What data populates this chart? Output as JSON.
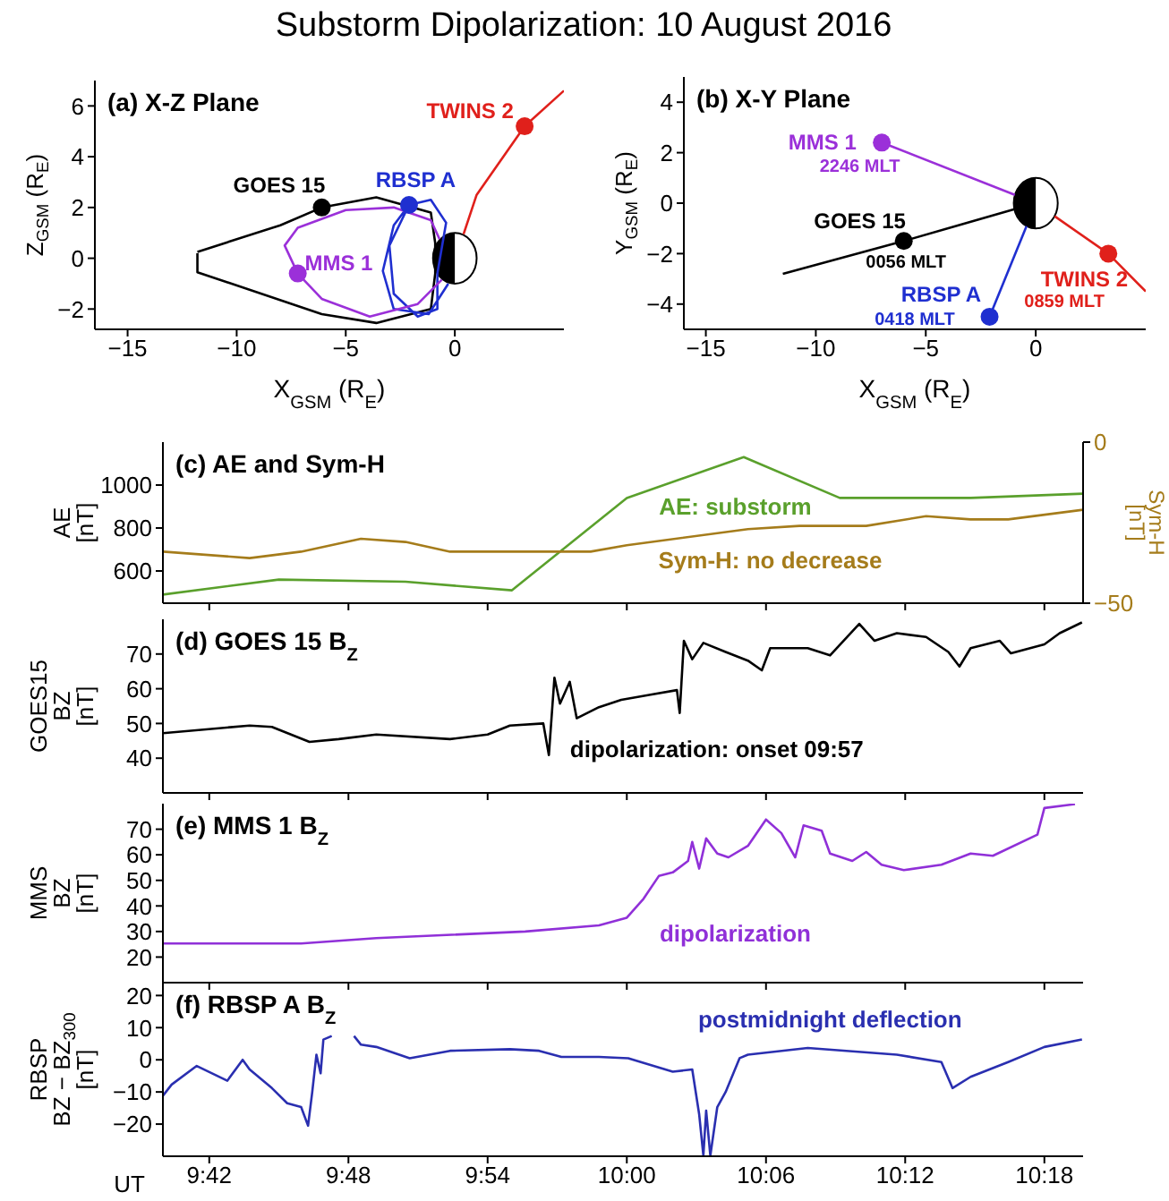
{
  "chart_data": [
    {
      "type": "line",
      "title": "Substorm Dipolarization:  10 August 2016",
      "subtitle": "(a)  X-Z Plane",
      "xlabel": "X$_{GSM}$  (R$_{E}$)",
      "ylabel": "Z$_{GSM}$  (R$_{E}$)",
      "xlim": [
        -16.5,
        5
      ],
      "ylim": [
        -2.8,
        7
      ],
      "xticks": [
        -15,
        -10,
        -5,
        0
      ],
      "yticks": [
        -2,
        0,
        2,
        4,
        6
      ],
      "series": [
        {
          "type": "line",
          "color": "#000000",
          "x": [
            -11.8,
            -8,
            -6.1,
            -3.6,
            -1.1,
            -0.9,
            -0.9,
            -1.1,
            -3.6,
            -6.1,
            -11.8,
            -11.8
          ],
          "values": [
            0.25,
            1.3,
            2.0,
            2.4,
            1.8,
            0.6,
            -0.6,
            -2.0,
            -2.55,
            -2.2,
            -0.55,
            0.2
          ]
        },
        {
          "type": "line",
          "color": "#1f2fd0",
          "x": [
            -0.3,
            -1.2,
            -2.8,
            -3.3,
            -2.8,
            -2.1,
            -1.1,
            -0.4,
            -0.8,
            -0.8,
            -1.7,
            -2.8,
            -3.0,
            -2.1
          ],
          "values": [
            -1.0,
            -2.2,
            -2.0,
            -0.5,
            1.3,
            2.1,
            2.3,
            1.4,
            -0.6,
            -2.0,
            -2.3,
            -1.4,
            0.5,
            2.1
          ]
        },
        {
          "type": "line",
          "color": "#e0201b",
          "x": [
            0.4,
            1.0,
            3.2,
            5.0
          ],
          "values": [
            0.95,
            2.5,
            5.2,
            6.6
          ]
        },
        {
          "type": "line",
          "color": "#9b30d9",
          "x": [
            -0.7,
            -1.1,
            -2.8,
            -5.0,
            -7.2,
            -7.8,
            -7.2,
            -6.1,
            -3.9,
            -1.7,
            -0.6
          ],
          "values": [
            0.75,
            1.5,
            2.0,
            1.9,
            1.2,
            0.5,
            -0.6,
            -1.6,
            -2.3,
            -1.8,
            -0.85
          ]
        },
        {
          "type": "scatter",
          "marker": "circle",
          "color": "#000000",
          "x": [
            -6.1
          ],
          "values": [
            2.0
          ]
        },
        {
          "type": "scatter",
          "marker": "circle",
          "color": "#1f2fd0",
          "x": [
            -2.1
          ],
          "values": [
            2.1
          ]
        },
        {
          "type": "scatter",
          "marker": "circle",
          "color": "#e0201b",
          "x": [
            3.2
          ],
          "values": [
            5.2
          ]
        },
        {
          "type": "scatter",
          "marker": "circle",
          "color": "#9b30d9",
          "x": [
            -7.2
          ],
          "values": [
            -0.6
          ]
        }
      ],
      "annotations": [
        "GOES 15",
        "RBSP A",
        "TWINS 2",
        "MMS 1"
      ]
    },
    {
      "type": "line",
      "title": "(b)  X-Y Plane",
      "xlabel": "X$_{GSM}$  (R$_{E}$)",
      "ylabel": "Y$_{GSM}$  (R$_{E}$)",
      "xlim": [
        -16,
        5
      ],
      "ylim": [
        -5,
        5
      ],
      "xticks": [
        -15,
        -10,
        -5,
        0
      ],
      "yticks": [
        -4,
        -2,
        0,
        2,
        4
      ],
      "series": [
        {
          "type": "line",
          "color": "#9b30d9",
          "x": [
            -7.0,
            -0.95
          ],
          "values": [
            2.4,
            0.33
          ]
        },
        {
          "type": "line",
          "color": "#000000",
          "x": [
            -11.5,
            -6.0,
            -0.97
          ],
          "values": [
            -2.8,
            -1.5,
            -0.24
          ]
        },
        {
          "type": "line",
          "color": "#1f2fd0",
          "x": [
            -2.1,
            -0.42
          ],
          "values": [
            -4.5,
            -0.91
          ]
        },
        {
          "type": "line",
          "color": "#e0201b",
          "x": [
            0.86,
            3.3,
            5
          ],
          "values": [
            -0.52,
            -2.0,
            -3.5
          ]
        },
        {
          "type": "scatter",
          "marker": "circle",
          "color": "#9b30d9",
          "x": [
            -7.0
          ],
          "values": [
            2.4
          ]
        },
        {
          "type": "scatter",
          "marker": "circle",
          "color": "#000000",
          "x": [
            -6.0
          ],
          "values": [
            -1.5
          ]
        },
        {
          "type": "scatter",
          "marker": "circle",
          "color": "#1f2fd0",
          "x": [
            -2.1
          ],
          "values": [
            -4.5
          ]
        },
        {
          "type": "scatter",
          "marker": "circle",
          "color": "#e0201b",
          "x": [
            3.3
          ],
          "values": [
            -2.0
          ]
        }
      ],
      "annotations": [
        "MMS 1",
        "GOES 15",
        "RBSP A",
        "TWINS 2",
        "2246 MLT",
        "0056 MLT",
        "0418 MLT",
        "0859 MLT"
      ]
    },
    {
      "type": "line",
      "title": "(c)  AE and Sym-H",
      "ylabel": "AE\n[nT]",
      "y2label": "Sym-H\n[nT]",
      "tick_labels": "y",
      "xlim": [
        9.6667,
        10.3278
      ],
      "xticks": [
        {
          "value": 9.7,
          "label": null
        },
        {
          "value": 9.8,
          "label": null
        },
        {
          "value": 9.9,
          "label": null
        },
        {
          "value": 10.0,
          "label": null
        },
        {
          "value": 10.1,
          "label": null
        },
        {
          "value": 10.2,
          "label": null
        },
        {
          "value": 10.3,
          "label": null
        }
      ],
      "ylim": [
        450,
        1200
      ],
      "yticks": [
        600,
        800,
        1000
      ],
      "y2lim": [
        -50,
        0
      ],
      "y2ticks": [
        -50,
        0
      ],
      "series": [
        {
          "color": "#5aa02c",
          "x": [
            9.6667,
            9.75,
            9.841,
            9.9175,
            10.0,
            10.084,
            10.153,
            10.247,
            10.3278
          ],
          "values": [
            490,
            560,
            550,
            510,
            940,
            1130,
            940,
            940,
            960
          ]
        },
        {
          "color": "#a57c1b",
          "axis": "y2",
          "x": [
            9.6667,
            9.729,
            9.766,
            9.809,
            9.841,
            9.873,
            9.974,
            10.0,
            10.087,
            10.124,
            10.172,
            10.215,
            10.247,
            10.274,
            10.3278
          ],
          "values": [
            -34,
            -36,
            -34,
            -30,
            -31,
            -34,
            -34,
            -32,
            -27,
            -26,
            -26,
            -23,
            -24,
            -24,
            -21
          ]
        }
      ],
      "annotations": [
        "AE:  substorm",
        "Sym-H:  no decrease"
      ]
    },
    {
      "type": "line",
      "title": "(d)  GOES 15 B$_{Z}$",
      "ylabel": "GOES15\nBZ\n[nT]",
      "tick_labels": "y",
      "xlim": [
        9.6667,
        10.3278
      ],
      "xticks": [
        {
          "value": 9.7,
          "label": null
        },
        {
          "value": 9.8,
          "label": null
        },
        {
          "value": 9.9,
          "label": null
        },
        {
          "value": 10.0,
          "label": null
        },
        {
          "value": 10.1,
          "label": null
        },
        {
          "value": 10.2,
          "label": null
        },
        {
          "value": 10.3,
          "label": null
        }
      ],
      "ylim": [
        30,
        80
      ],
      "yticks": [
        40,
        50,
        60,
        70
      ],
      "series": [
        {
          "color": "#000000",
          "x": [
            9.6667,
            9.729,
            9.745,
            9.772,
            9.793,
            9.82,
            9.873,
            9.9,
            9.916,
            9.94,
            9.944,
            9.948,
            9.952,
            9.959,
            9.964,
            9.98,
            9.996,
            10.017,
            10.036,
            10.038,
            10.041,
            10.047,
            10.055,
            10.071,
            10.087,
            10.097,
            10.103,
            10.13,
            10.146,
            10.167,
            10.178,
            10.194,
            10.215,
            10.231,
            10.239,
            10.247,
            10.268,
            10.276,
            10.3,
            10.311,
            10.327
          ],
          "values": [
            47.2,
            49.4,
            49,
            44.7,
            45.5,
            46.8,
            45.5,
            46.8,
            49.4,
            50,
            40.9,
            63.2,
            55.7,
            62,
            51.5,
            54.7,
            56.8,
            58.3,
            59.6,
            53,
            73.8,
            68.5,
            73.2,
            70.6,
            68.1,
            65.3,
            71.7,
            71.7,
            69.6,
            78.7,
            73.8,
            76,
            74.9,
            70.6,
            66.4,
            71.7,
            73.8,
            70.2,
            72.8,
            76,
            79.1
          ]
        }
      ],
      "annotations": [
        "dipolarization:  onset 09:57"
      ]
    },
    {
      "type": "line",
      "title": "(e)  MMS 1  B$_{Z}$",
      "ylabel": "MMS\nBZ\n[nT]",
      "tick_labels": "y",
      "xlim": [
        9.6667,
        10.3278
      ],
      "xticks": [
        {
          "value": 9.7,
          "label": null
        },
        {
          "value": 9.8,
          "label": null
        },
        {
          "value": 9.9,
          "label": null
        },
        {
          "value": 10.0,
          "label": null
        },
        {
          "value": 10.1,
          "label": null
        },
        {
          "value": 10.2,
          "label": null
        },
        {
          "value": 10.3,
          "label": null
        }
      ],
      "ylim": [
        10,
        80
      ],
      "yticks": [
        20,
        30,
        40,
        50,
        60,
        70
      ],
      "series": [
        {
          "color": "#9030d8",
          "x": [
            9.6667,
            9.766,
            9.82,
            9.927,
            9.98,
            10.0,
            10.012,
            10.023,
            10.033,
            10.044,
            10.047,
            10.052,
            10.057,
            10.065,
            10.073,
            10.087,
            10.1,
            10.111,
            10.121,
            10.127,
            10.14,
            10.146,
            10.162,
            10.172,
            10.183,
            10.199,
            10.226,
            10.247,
            10.263,
            10.295,
            10.3,
            10.322
          ],
          "values": [
            25.3,
            25.3,
            27.4,
            30,
            32.4,
            35.4,
            42.8,
            51.7,
            53.1,
            57.6,
            65,
            54.6,
            66.4,
            60.5,
            59,
            63.5,
            73.8,
            68.5,
            59,
            71.5,
            69.4,
            60.5,
            57.6,
            61.1,
            56.1,
            54,
            56.1,
            60.5,
            59.6,
            67.9,
            78.3,
            79.8
          ]
        }
      ],
      "annotations": [
        "dipolarization"
      ]
    },
    {
      "type": "line",
      "title": "(f)  RBSP A  B$_{Z}$",
      "xlabel": "UT",
      "ylabel": "RBSP\nBZ − BZ$_{300}$\n[nT]",
      "xlim": [
        9.6667,
        10.3278
      ],
      "xticks": [
        {
          "value": 9.7,
          "label": "9:42"
        },
        {
          "value": 9.8,
          "label": "9:48"
        },
        {
          "value": 9.9,
          "label": "9:54"
        },
        {
          "value": 10.0,
          "label": "10:00"
        },
        {
          "value": 10.1,
          "label": "10:06"
        },
        {
          "value": 10.2,
          "label": "10:12"
        },
        {
          "value": 10.3,
          "label": "10:18"
        }
      ],
      "ylim": [
        -30,
        24
      ],
      "yticks": [
        -20,
        -10,
        0,
        10,
        20
      ],
      "series": [
        {
          "color": "#2a2fb0",
          "x": [
            9.6667,
            9.673,
            9.691,
            9.702,
            9.713,
            9.724,
            9.729,
            9.745,
            9.756,
            9.766,
            9.771,
            9.774,
            9.777,
            9.78,
            9.782,
            9.788,
            9.796,
            9.804,
            9.809,
            9.82,
            9.844,
            9.873,
            9.916,
            9.937,
            9.953,
            9.98,
            10.001,
            10.033,
            10.047,
            10.052,
            10.055,
            10.057,
            10.06,
            10.065,
            10.071,
            10.081,
            10.087,
            10.13,
            10.194,
            10.226,
            10.234,
            10.247,
            10.274,
            10.3,
            10.327
          ],
          "values": [
            -11.2,
            -7.7,
            -1.9,
            -4.2,
            -6.5,
            0,
            -3,
            -8.8,
            -13.5,
            -14.7,
            -20.5,
            -10,
            1.6,
            -4.2,
            6.3,
            7.4,
            null,
            7.4,
            4.7,
            4,
            0.5,
            2.8,
            3.3,
            2.8,
            0.9,
            0.9,
            0.5,
            -3.7,
            -3,
            -17,
            -29.8,
            -15.8,
            -29.8,
            -14.7,
            -10,
            0.5,
            1.6,
            3.7,
            1.6,
            -0.7,
            -8.8,
            -5.3,
            -0.7,
            4,
            6.3
          ]
        }
      ],
      "annotations": [
        "postmidnight deflection"
      ]
    }
  ]
}
